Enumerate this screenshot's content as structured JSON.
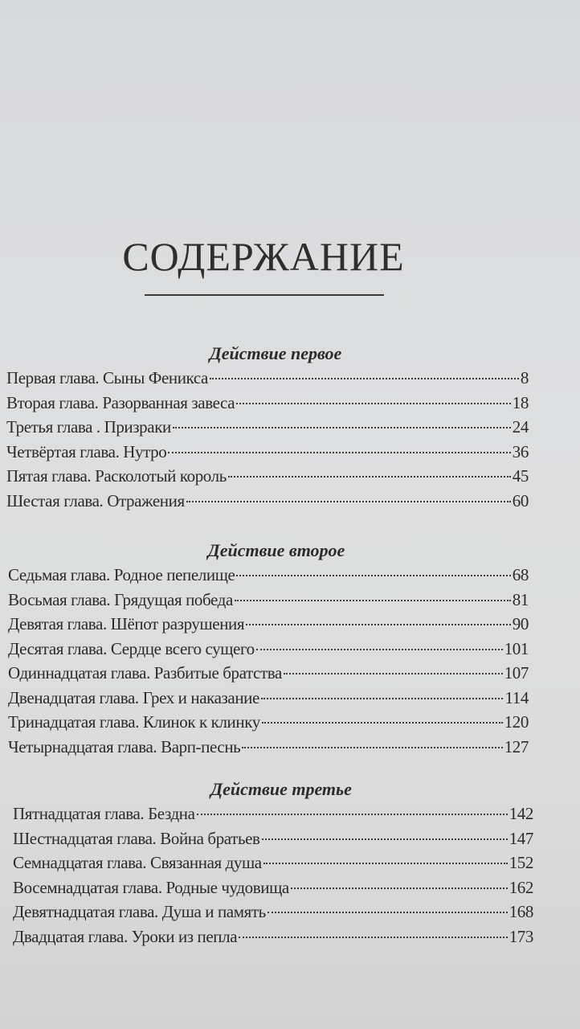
{
  "title": "СОДЕРЖАНИЕ",
  "sections": [
    {
      "heading": "Действие первое",
      "items": [
        {
          "name": "Первая глава. Сыны Феникса",
          "page": "8"
        },
        {
          "name": "Вторая глава. Разорванная завеса",
          "page": "18"
        },
        {
          "name": "Третья глава . Призраки",
          "page": "24"
        },
        {
          "name": "Четвёртая глава. Нутро",
          "page": "36"
        },
        {
          "name": "Пятая глава. Расколотый король",
          "page": "45"
        },
        {
          "name": "Шестая глава. Отражения",
          "page": "60"
        }
      ]
    },
    {
      "heading": "Действие второе",
      "items": [
        {
          "name": "Седьмая глава. Родное пепелище",
          "page": "68"
        },
        {
          "name": "Восьмая глава. Грядущая победа",
          "page": "81"
        },
        {
          "name": "Девятая глава. Шёпот разрушения",
          "page": "90"
        },
        {
          "name": "Десятая глава. Сердце всего сущего",
          "page": "101"
        },
        {
          "name": "Одиннадцатая глава. Разбитые братства",
          "page": "107"
        },
        {
          "name": "Двенадцатая глава. Грех и наказание",
          "page": "114"
        },
        {
          "name": "Тринадцатая глава. Клинок к клинку",
          "page": "120"
        },
        {
          "name": "Четырнадцатая глава. Варп-песнь",
          "page": "127"
        }
      ]
    },
    {
      "heading": "Действие третье",
      "items": [
        {
          "name": "Пятнадцатая глава. Бездна",
          "page": "142"
        },
        {
          "name": "Шестнадцатая глава. Война братьев",
          "page": "147"
        },
        {
          "name": "Семнадцатая глава. Связанная душа",
          "page": "152"
        },
        {
          "name": "Восемнадцатая глава. Родные чудовища",
          "page": "162"
        },
        {
          "name": "Девятнадцатая глава. Душа и память",
          "page": "168"
        },
        {
          "name": "Двадцатая глава. Уроки из пепла",
          "page": "173"
        }
      ]
    }
  ]
}
